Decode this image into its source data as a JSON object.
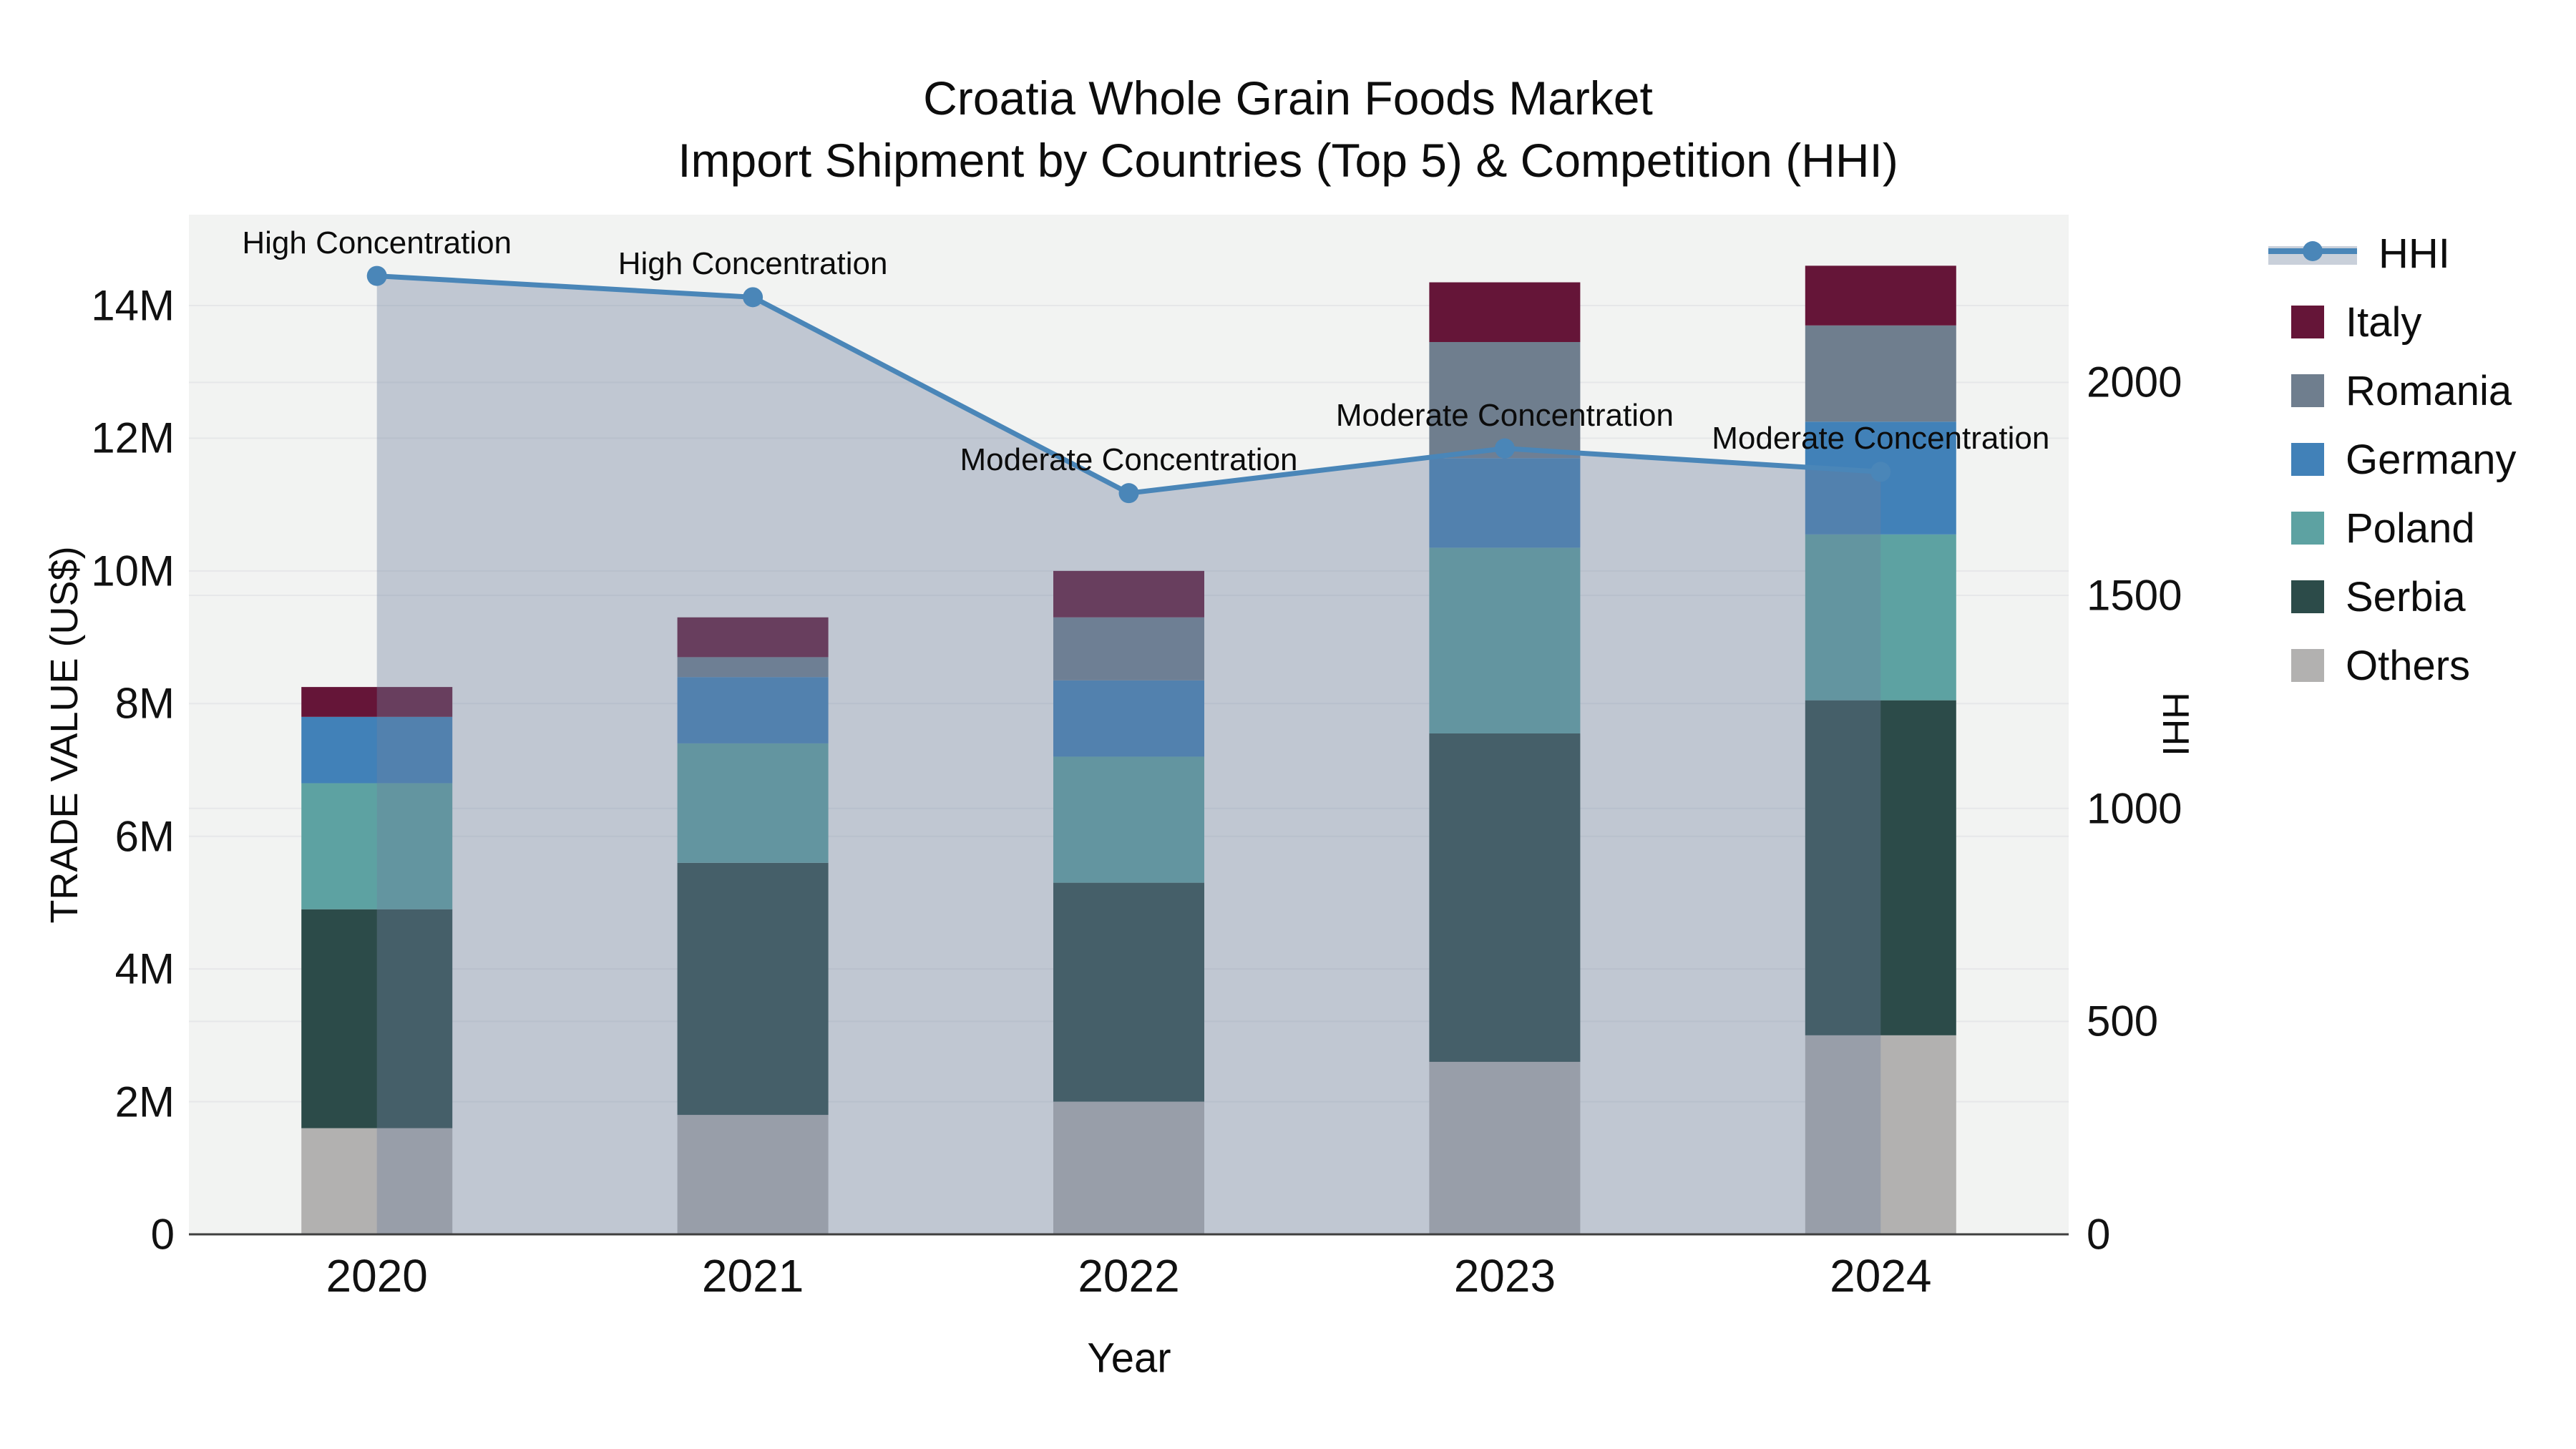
{
  "title": {
    "line1": "Croatia Whole Grain Foods Market",
    "line2": "Import Shipment by Countries (Top 5) & Competition (HHI)"
  },
  "axes": {
    "x": {
      "title": "Year",
      "ticks": [
        "2020",
        "2021",
        "2022",
        "2023",
        "2024"
      ]
    },
    "y_left": {
      "title": "TRADE VALUE (US$)",
      "ticks": [
        {
          "v": 0,
          "label": "0"
        },
        {
          "v": 2,
          "label": "2M"
        },
        {
          "v": 4,
          "label": "4M"
        },
        {
          "v": 6,
          "label": "6M"
        },
        {
          "v": 8,
          "label": "8M"
        },
        {
          "v": 10,
          "label": "10M"
        },
        {
          "v": 12,
          "label": "12M"
        },
        {
          "v": 14,
          "label": "14M"
        }
      ]
    },
    "y_right": {
      "title": "HHI",
      "ticks": [
        {
          "v": 0,
          "label": "0"
        },
        {
          "v": 500,
          "label": "500"
        },
        {
          "v": 1000,
          "label": "1000"
        },
        {
          "v": 1500,
          "label": "1500"
        },
        {
          "v": 2000,
          "label": "2000"
        }
      ]
    }
  },
  "legend": {
    "items": [
      {
        "label": "HHI",
        "type": "line",
        "color": "#4a86b8"
      },
      {
        "label": "Italy",
        "type": "swatch",
        "color": "#651538"
      },
      {
        "label": "Romania",
        "type": "swatch",
        "color": "#6f7e8e"
      },
      {
        "label": "Germany",
        "type": "swatch",
        "color": "#4181b8"
      },
      {
        "label": "Poland",
        "type": "swatch",
        "color": "#5da2a2"
      },
      {
        "label": "Serbia",
        "type": "swatch",
        "color": "#2c4b49"
      },
      {
        "label": "Others",
        "type": "swatch",
        "color": "#b2b1b0"
      }
    ]
  },
  "colors": {
    "plot_background": "#f2f3f2",
    "gridline": "#e6e7e9",
    "axis_line": "#3f3f3f",
    "hhi_line": "#4a86b8",
    "hhi_area_fill": "rgba(110,128,158,0.38)"
  },
  "chart_data": {
    "type": "bar+line",
    "title": "Croatia Whole Grain Foods Market - Import Shipment by Countries (Top 5) & Competition (HHI)",
    "categories": [
      "2020",
      "2021",
      "2022",
      "2023",
      "2024"
    ],
    "bar_unit": "US$ millions (left axis, TRADE VALUE)",
    "stack_order_bottom_to_top": [
      "Others",
      "Serbia",
      "Poland",
      "Germany",
      "Romania",
      "Italy"
    ],
    "series": [
      {
        "name": "Others",
        "color": "#b2b1b0",
        "values": [
          1.6,
          1.8,
          2.0,
          2.6,
          3.0
        ]
      },
      {
        "name": "Serbia",
        "color": "#2c4b49",
        "values": [
          3.3,
          3.8,
          3.3,
          4.95,
          5.05
        ]
      },
      {
        "name": "Poland",
        "color": "#5da2a2",
        "values": [
          1.9,
          1.8,
          1.9,
          2.8,
          2.5
        ]
      },
      {
        "name": "Germany",
        "color": "#4181b8",
        "values": [
          1.0,
          1.0,
          1.15,
          1.35,
          1.7
        ]
      },
      {
        "name": "Romania",
        "color": "#6f7e8e",
        "values": [
          0.0,
          0.3,
          0.95,
          1.75,
          1.45
        ]
      },
      {
        "name": "Italy",
        "color": "#651538",
        "values": [
          0.45,
          0.6,
          0.7,
          0.9,
          0.9
        ]
      }
    ],
    "bar_totals": [
      8.25,
      9.3,
      10.0,
      14.35,
      14.6
    ],
    "line": {
      "name": "HHI",
      "axis": "right",
      "color": "#4a86b8",
      "fill_to_zero": true,
      "fill_color": "rgba(110,128,158,0.38)",
      "values": [
        2250,
        2200,
        1740,
        1845,
        1790
      ],
      "annotations": [
        "High Concentration",
        "High Concentration",
        "Moderate Concentration",
        "Moderate Concentration",
        "Moderate Concentration"
      ]
    },
    "layout": {
      "y_left_range": [
        0,
        15.37
      ],
      "y_right_range": [
        0,
        2392
      ],
      "grid": true,
      "legend_position": "right"
    }
  }
}
